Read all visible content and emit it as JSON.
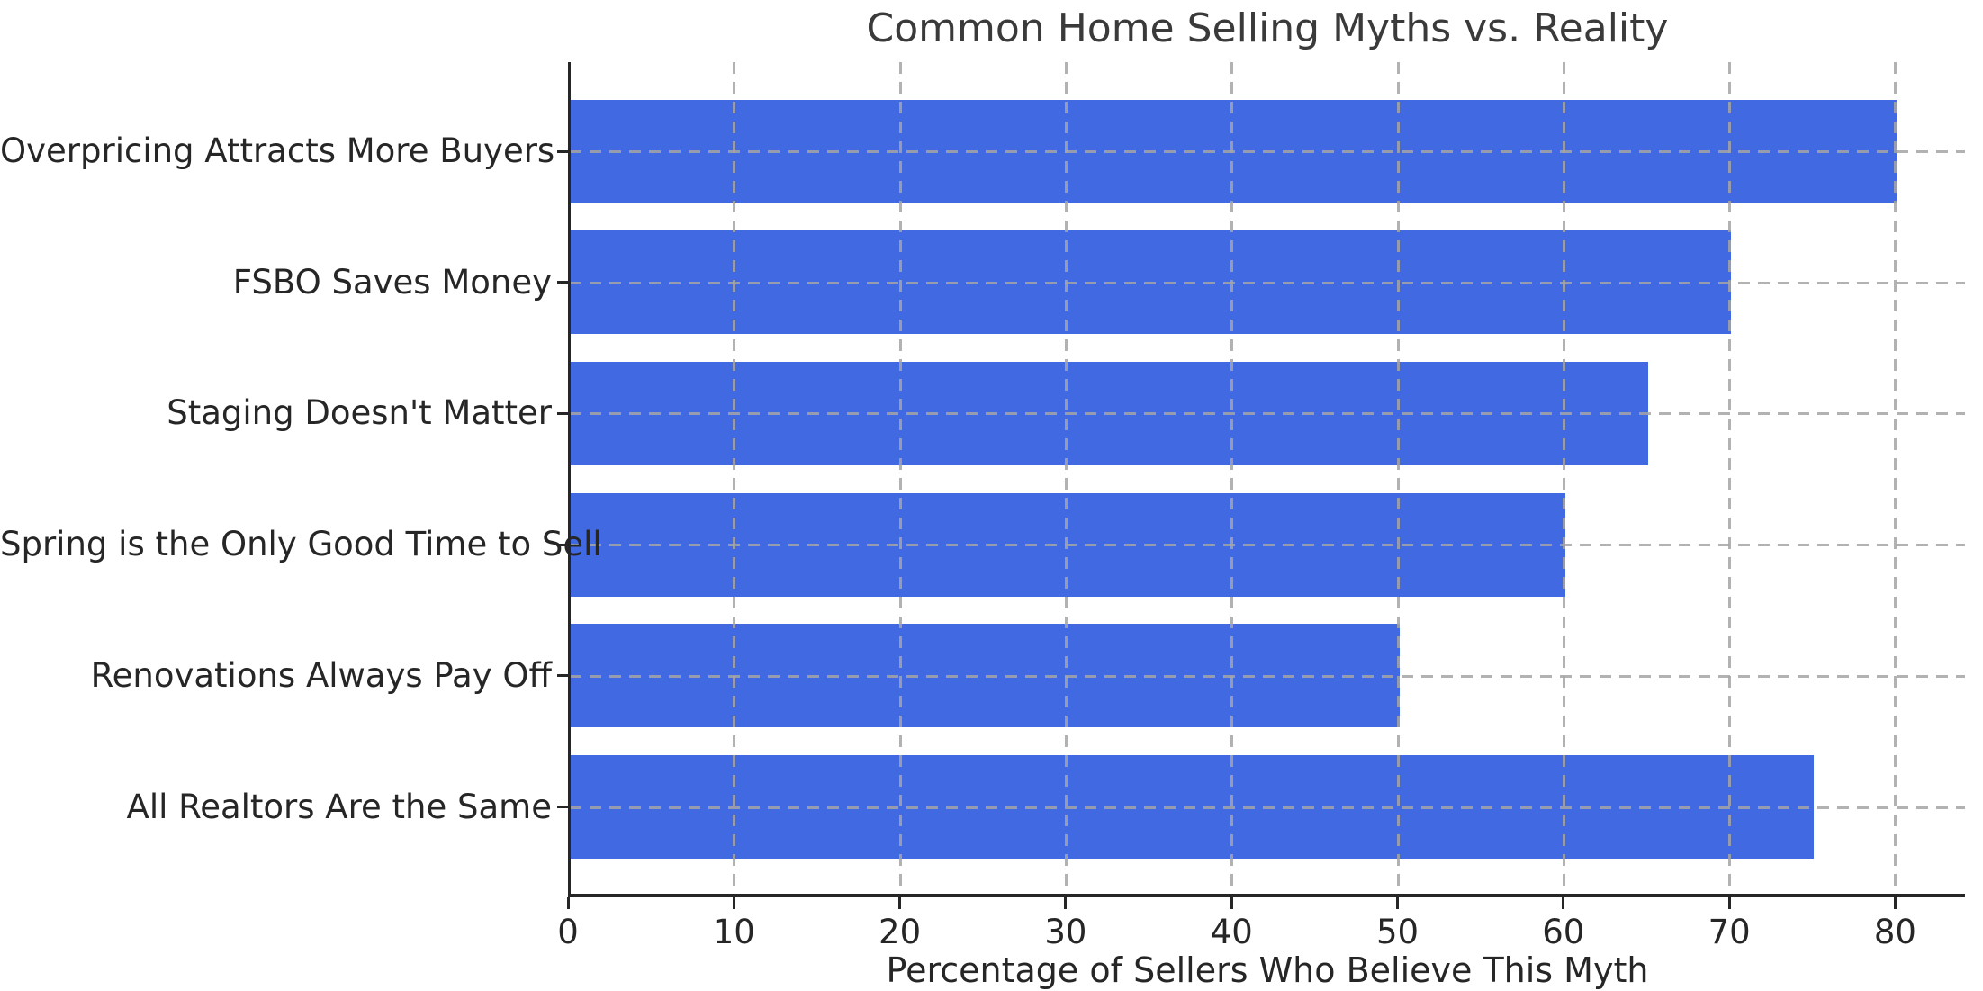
{
  "chart_data": {
    "type": "bar",
    "orientation": "horizontal",
    "title": "Common Home Selling Myths vs. Reality",
    "xlabel": "Percentage of Sellers Who Believe This Myth",
    "ylabel": "",
    "categories": [
      "Overpricing Attracts More Buyers",
      "FSBO Saves Money",
      "Staging Doesn't Matter",
      "Spring is the Only Good Time to Sell",
      "Renovations Always Pay Off",
      "All Realtors Are the Same"
    ],
    "values": [
      80,
      70,
      65,
      60,
      50,
      75
    ],
    "xticks": [
      0,
      10,
      20,
      30,
      40,
      50,
      60,
      70,
      80
    ],
    "xlim": [
      0,
      84.1
    ],
    "grid": {
      "style": "dashed",
      "axes": "both",
      "above_bars": true
    },
    "legend": "none",
    "bar_color": "#4169E1"
  },
  "colors": {
    "bar": "#4169E1",
    "title_text": "#3a3a3a",
    "axis_text": "#262626",
    "spine": "#262626",
    "grid": "#a5a5a5",
    "background": "#ffffff"
  }
}
